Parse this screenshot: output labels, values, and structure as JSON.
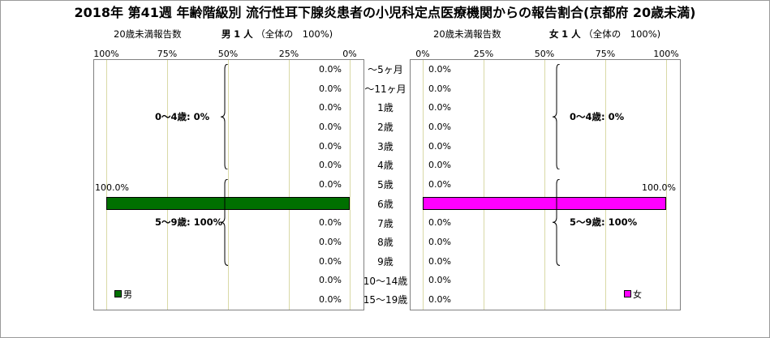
{
  "title": "2018年 第41週 年齢階級別 流行性耳下腺炎患者の小児科定点医療機関からの報告割合(京都府 20歳未満)",
  "header_left": {
    "caption": "20歳未満報告数",
    "sex": "男",
    "count": "1 人",
    "total": "（全体の　100%)"
  },
  "header_right": {
    "caption": "20歳未満報告数",
    "sex": "女",
    "count": "1 人",
    "total": "（全体の　100%)"
  },
  "chart_data": [
    {
      "type": "bar",
      "orientation": "horizontal",
      "direction": "right-to-left",
      "series": [
        {
          "name": "男",
          "color": "#007000",
          "values": [
            0.0,
            0.0,
            0.0,
            0.0,
            0.0,
            0.0,
            0.0,
            100.0,
            0.0,
            0.0,
            0.0,
            0.0,
            0.0
          ]
        }
      ],
      "value_labels": [
        "0.0%",
        "0.0%",
        "0.0%",
        "0.0%",
        "0.0%",
        "0.0%",
        "0.0%",
        "100.0%",
        "0.0%",
        "0.0%",
        "0.0%",
        "0.0%",
        "0.0%"
      ],
      "xlim": [
        0,
        100
      ],
      "ticks": [
        "100%",
        "75%",
        "50%",
        "25%",
        "0%"
      ],
      "groups": [
        {
          "label": "0～4歳: 0%"
        },
        {
          "label": "5～9歳: 100%"
        }
      ],
      "legend": "bottom-left"
    },
    {
      "type": "bar",
      "orientation": "horizontal",
      "direction": "left-to-right",
      "series": [
        {
          "name": "女",
          "color": "#ff00ff",
          "values": [
            0.0,
            0.0,
            0.0,
            0.0,
            0.0,
            0.0,
            0.0,
            100.0,
            0.0,
            0.0,
            0.0,
            0.0,
            0.0
          ]
        }
      ],
      "value_labels": [
        "0.0%",
        "0.0%",
        "0.0%",
        "0.0%",
        "0.0%",
        "0.0%",
        "0.0%",
        "100.0%",
        "0.0%",
        "0.0%",
        "0.0%",
        "0.0%",
        "0.0%"
      ],
      "xlim": [
        0,
        100
      ],
      "ticks": [
        "0%",
        "25%",
        "50%",
        "75%",
        "100%"
      ],
      "groups": [
        {
          "label": "0～4歳: 0%"
        },
        {
          "label": "5～9歳: 100%"
        }
      ],
      "legend": "bottom-right"
    }
  ],
  "age_groups": [
    "～5ヶ月",
    "～11ヶ月",
    "1歳",
    "2歳",
    "3歳",
    "4歳",
    "5歳",
    "6歳",
    "7歳",
    "8歳",
    "9歳",
    "10～14歳",
    "15～19歳"
  ]
}
